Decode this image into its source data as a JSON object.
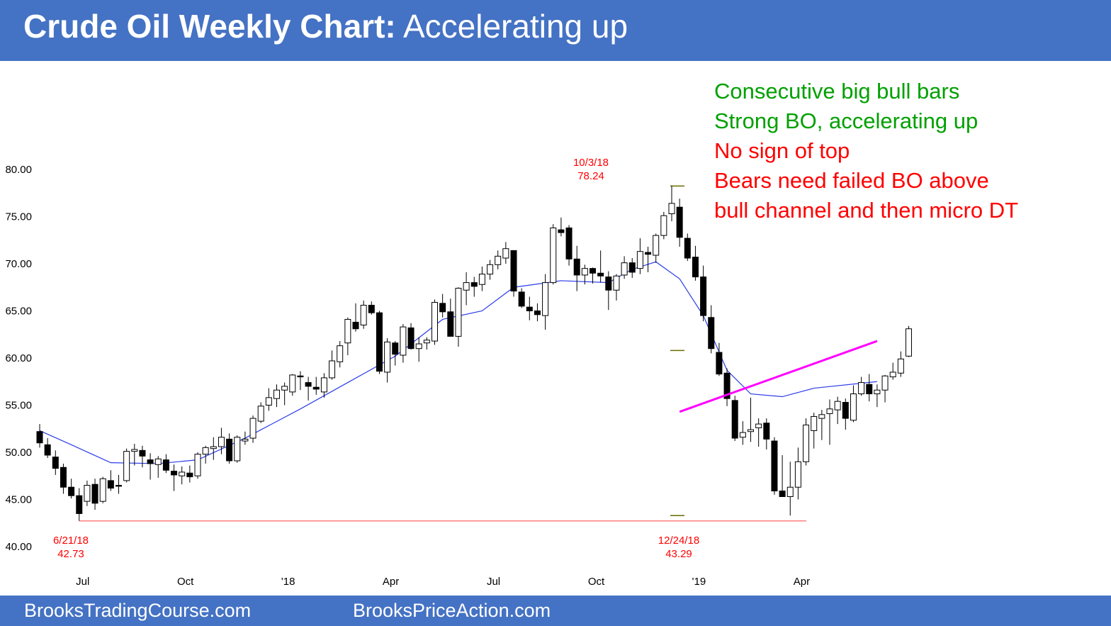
{
  "header": {
    "title_bold": "Crude Oil Weekly Chart:",
    "title_rest": "Accelerating up"
  },
  "footer": {
    "link1": "BrooksTradingCourse.com",
    "link2": "BrooksPriceAction.com"
  },
  "annotations": [
    {
      "text": "Consecutive big bull bars",
      "color": "#00a000"
    },
    {
      "text": "Strong BO, accelerating up",
      "color": "#00a000"
    },
    {
      "text": "No sign of top",
      "color": "#ff0000"
    },
    {
      "text": "Bears need failed BO above",
      "color": "#ff0000"
    },
    {
      "text": "bull channel and then micro DT",
      "color": "#ff0000"
    }
  ],
  "colors": {
    "title_bar": "#4472c4",
    "moving_average": "#2b3de8",
    "trend_line": "#ff00ff",
    "horizontal_lines": "#6b6b00",
    "support_line": "#ff8080",
    "label_red": "#ff0000"
  },
  "chart_data": {
    "type": "candlestick",
    "title": "Crude Oil Weekly Chart: Accelerating up",
    "ylim": [
      40,
      80
    ],
    "y_ticks": [
      "80.00",
      "75.00",
      "70.00",
      "65.00",
      "60.00",
      "55.00",
      "50.00",
      "45.00",
      "40.00"
    ],
    "x_ticks": [
      {
        "label": "Jul",
        "week": 5
      },
      {
        "label": "Oct",
        "week": 18
      },
      {
        "label": "'18",
        "week": 31
      },
      {
        "label": "Apr",
        "week": 44
      },
      {
        "label": "Jul",
        "week": 57
      },
      {
        "label": "Oct",
        "week": 70
      },
      {
        "label": "'19",
        "week": 83
      },
      {
        "label": "Apr",
        "week": 96
      }
    ],
    "candles": [
      [
        52.2,
        53.0,
        50.5,
        51.0
      ],
      [
        50.8,
        51.5,
        49.4,
        49.7
      ],
      [
        49.5,
        50.2,
        47.6,
        48.3
      ],
      [
        48.4,
        48.8,
        45.6,
        46.3
      ],
      [
        46.3,
        47.2,
        45.1,
        45.4
      ],
      [
        45.4,
        46.2,
        42.73,
        43.5
      ],
      [
        44.8,
        47.0,
        44.3,
        46.5
      ],
      [
        46.6,
        47.2,
        43.9,
        44.6
      ],
      [
        44.8,
        47.4,
        44.6,
        47.2
      ],
      [
        47.0,
        48.1,
        45.9,
        46.2
      ],
      [
        46.5,
        47.6,
        45.6,
        46.4
      ],
      [
        47.0,
        50.4,
        46.8,
        50.1
      ],
      [
        50.1,
        50.9,
        48.6,
        50.3
      ],
      [
        50.2,
        50.7,
        48.4,
        49.6
      ],
      [
        49.2,
        49.9,
        47.1,
        48.8
      ],
      [
        48.7,
        49.6,
        47.3,
        49.3
      ],
      [
        49.2,
        49.8,
        47.8,
        48.1
      ],
      [
        48.0,
        48.7,
        45.9,
        47.6
      ],
      [
        47.5,
        48.5,
        46.6,
        47.9
      ],
      [
        47.8,
        48.6,
        46.8,
        47.4
      ],
      [
        47.5,
        50.0,
        47.2,
        49.8
      ],
      [
        49.8,
        50.7,
        48.8,
        50.5
      ],
      [
        50.4,
        51.6,
        49.2,
        50.6
      ],
      [
        50.6,
        52.6,
        49.8,
        51.6
      ],
      [
        51.4,
        52.0,
        48.8,
        49.1
      ],
      [
        49.1,
        51.8,
        48.9,
        51.6
      ],
      [
        51.2,
        52.2,
        50.8,
        51.4
      ],
      [
        51.5,
        53.9,
        51.0,
        53.6
      ],
      [
        53.3,
        55.3,
        53.1,
        54.9
      ],
      [
        55.0,
        56.8,
        54.4,
        55.8
      ],
      [
        55.7,
        57.2,
        54.8,
        56.6
      ],
      [
        56.6,
        57.4,
        55.0,
        57.0
      ],
      [
        56.4,
        58.3,
        56.0,
        58.2
      ],
      [
        58.1,
        58.6,
        56.6,
        58.0
      ],
      [
        57.4,
        58.0,
        55.5,
        57.0
      ],
      [
        56.9,
        58.0,
        56.1,
        56.7
      ],
      [
        56.4,
        58.4,
        55.8,
        57.9
      ],
      [
        57.9,
        60.8,
        57.7,
        59.7
      ],
      [
        59.6,
        61.8,
        59.0,
        61.3
      ],
      [
        61.6,
        64.3,
        60.3,
        64.1
      ],
      [
        63.8,
        65.8,
        62.8,
        63.1
      ],
      [
        63.5,
        66.1,
        63.1,
        65.6
      ],
      [
        65.6,
        66.0,
        64.6,
        64.8
      ],
      [
        64.8,
        65.0,
        58.3,
        58.6
      ],
      [
        58.5,
        62.1,
        57.4,
        61.7
      ],
      [
        61.6,
        61.8,
        59.2,
        60.4
      ],
      [
        60.3,
        63.6,
        59.5,
        63.3
      ],
      [
        63.2,
        63.7,
        60.9,
        61.0
      ],
      [
        61.0,
        62.2,
        59.6,
        61.5
      ],
      [
        61.6,
        62.2,
        60.9,
        61.9
      ],
      [
        61.8,
        66.2,
        61.4,
        65.9
      ],
      [
        65.8,
        66.8,
        64.3,
        64.9
      ],
      [
        64.9,
        66.3,
        62.3,
        62.3
      ],
      [
        62.3,
        67.5,
        61.2,
        67.4
      ],
      [
        67.2,
        69.1,
        65.6,
        68.0
      ],
      [
        68.0,
        68.6,
        66.5,
        67.6
      ],
      [
        67.8,
        69.7,
        67.1,
        68.9
      ],
      [
        68.9,
        70.4,
        68.3,
        69.9
      ],
      [
        69.9,
        71.4,
        69.4,
        70.8
      ],
      [
        70.6,
        72.3,
        70.0,
        71.6
      ],
      [
        71.4,
        71.4,
        66.5,
        67.1
      ],
      [
        67.0,
        67.4,
        65.3,
        65.5
      ],
      [
        65.4,
        66.5,
        64.0,
        65.0
      ],
      [
        65.0,
        65.8,
        63.9,
        64.6
      ],
      [
        64.5,
        68.9,
        63.0,
        68.0
      ],
      [
        68.0,
        74.2,
        67.8,
        73.8
      ],
      [
        73.6,
        74.9,
        72.9,
        73.3
      ],
      [
        73.8,
        74.1,
        69.8,
        70.5
      ],
      [
        70.5,
        71.9,
        67.1,
        68.8
      ],
      [
        68.8,
        69.9,
        67.8,
        69.5
      ],
      [
        69.5,
        69.6,
        67.9,
        69.0
      ],
      [
        69.0,
        71.4,
        68.0,
        68.7
      ],
      [
        68.6,
        69.2,
        65.1,
        67.2
      ],
      [
        67.2,
        68.9,
        66.1,
        68.7
      ],
      [
        68.8,
        70.8,
        68.4,
        70.1
      ],
      [
        70.1,
        70.6,
        68.5,
        69.1
      ],
      [
        69.5,
        72.7,
        68.9,
        71.3
      ],
      [
        71.2,
        71.8,
        69.1,
        71.0
      ],
      [
        70.9,
        73.2,
        70.1,
        73.0
      ],
      [
        73.0,
        75.5,
        72.6,
        75.1
      ],
      [
        75.3,
        78.24,
        74.5,
        76.4
      ],
      [
        76.0,
        76.9,
        71.8,
        72.8
      ],
      [
        72.7,
        73.2,
        70.3,
        70.6
      ],
      [
        70.7,
        71.9,
        68.2,
        68.6
      ],
      [
        68.6,
        69.8,
        63.9,
        64.5
      ],
      [
        64.3,
        65.6,
        60.5,
        61.0
      ],
      [
        60.6,
        61.6,
        58.1,
        58.3
      ],
      [
        58.4,
        58.9,
        54.9,
        55.7
      ],
      [
        55.5,
        56.0,
        51.2,
        51.5
      ],
      [
        51.6,
        53.3,
        50.8,
        52.1
      ],
      [
        52.2,
        55.8,
        51.1,
        52.4
      ],
      [
        52.6,
        53.6,
        50.6,
        53.0
      ],
      [
        53.1,
        53.6,
        50.3,
        51.4
      ],
      [
        51.2,
        51.6,
        45.5,
        45.9
      ],
      [
        45.9,
        49.7,
        45.3,
        45.3
      ],
      [
        45.3,
        49.0,
        43.29,
        46.3
      ],
      [
        46.3,
        50.5,
        45.0,
        49.0
      ],
      [
        49.0,
        53.6,
        48.6,
        52.9
      ],
      [
        52.3,
        54.2,
        50.4,
        53.8
      ],
      [
        53.6,
        54.5,
        51.3,
        54.0
      ],
      [
        54.1,
        55.6,
        50.8,
        54.6
      ],
      [
        54.5,
        55.9,
        53.0,
        55.4
      ],
      [
        55.3,
        55.7,
        52.4,
        53.6
      ],
      [
        53.4,
        57.1,
        53.2,
        56.2
      ],
      [
        56.2,
        58.0,
        56.0,
        57.4
      ],
      [
        57.2,
        58.3,
        55.4,
        56.2
      ],
      [
        56.2,
        57.2,
        54.8,
        56.6
      ],
      [
        56.6,
        58.2,
        55.3,
        58.1
      ],
      [
        58.0,
        59.5,
        57.7,
        58.5
      ],
      [
        58.4,
        60.7,
        58.0,
        59.9
      ],
      [
        60.2,
        63.4,
        60.1,
        63.1
      ]
    ],
    "moving_average": [
      [
        0,
        52.3
      ],
      [
        4,
        50.8
      ],
      [
        9,
        48.9
      ],
      [
        15,
        48.8
      ],
      [
        20,
        49.2
      ],
      [
        26,
        51.5
      ],
      [
        33,
        54.6
      ],
      [
        39,
        57.4
      ],
      [
        45,
        60.2
      ],
      [
        51,
        64.1
      ],
      [
        56,
        65.0
      ],
      [
        60,
        67.5
      ],
      [
        66,
        68.2
      ],
      [
        72,
        68.0
      ],
      [
        75,
        69.4
      ],
      [
        78,
        70.2
      ],
      [
        81,
        68.4
      ],
      [
        84,
        64.5
      ],
      [
        87,
        58.7
      ],
      [
        90,
        56.2
      ],
      [
        94,
        55.9
      ],
      [
        98,
        56.8
      ],
      [
        106,
        57.5
      ]
    ],
    "annotations": [
      {
        "date": "10/3/18",
        "value": "78.24"
      },
      {
        "date": "6/21/18",
        "value": "42.73"
      },
      {
        "date": "12/24/18",
        "value": "43.29"
      }
    ],
    "reference_lines": {
      "high": 78.24,
      "breakout_level": 60.8,
      "low": 43.29,
      "support": 42.73
    },
    "trend_line": {
      "from": [
        81,
        54.3
      ],
      "to": [
        106,
        61.8
      ]
    }
  }
}
